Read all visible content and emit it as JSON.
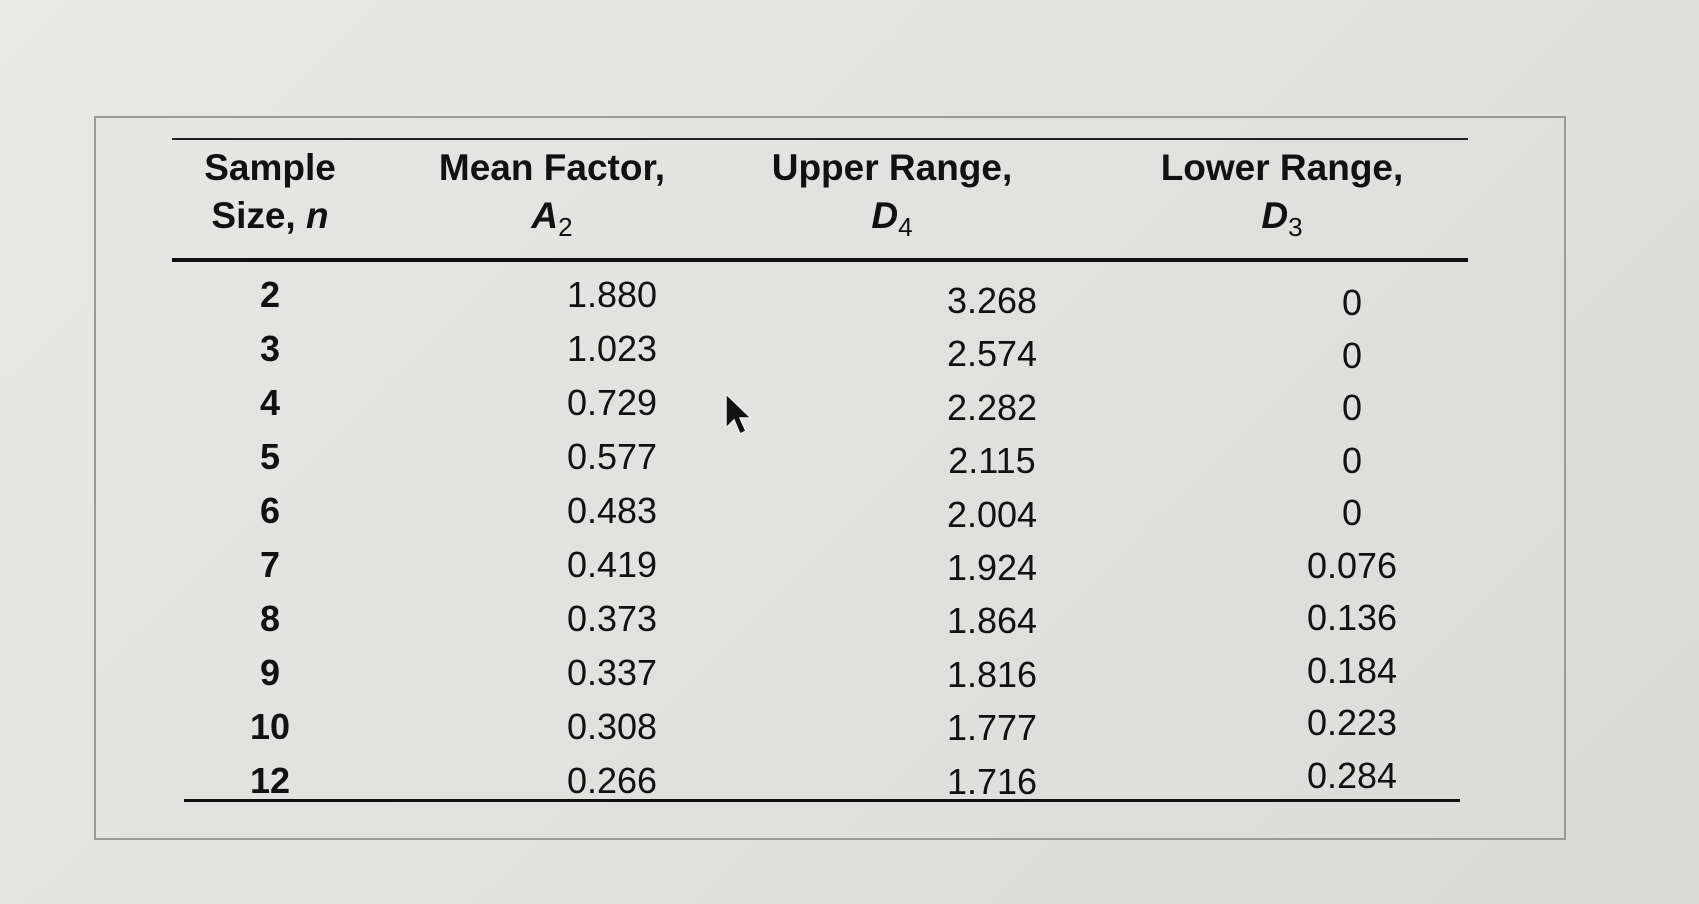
{
  "table": {
    "headers": [
      {
        "line1": "Sample",
        "line2_text": "Size, ",
        "line2_symbol": "n",
        "subscript": ""
      },
      {
        "line1": "Mean Factor,",
        "line2_text": "",
        "line2_symbol": "A",
        "subscript": "2"
      },
      {
        "line1": "Upper Range,",
        "line2_text": "",
        "line2_symbol": "D",
        "subscript": "4"
      },
      {
        "line1": "Lower Range,",
        "line2_text": "",
        "line2_symbol": "D",
        "subscript": "3"
      }
    ],
    "rows": [
      [
        "2",
        "1.880",
        "3.268",
        "0"
      ],
      [
        "3",
        "1.023",
        "2.574",
        "0"
      ],
      [
        "4",
        "0.729",
        "2.282",
        "0"
      ],
      [
        "5",
        "0.577",
        "2.115",
        "0"
      ],
      [
        "6",
        "0.483",
        "2.004",
        "0"
      ],
      [
        "7",
        "0.419",
        "1.924",
        "0.076"
      ],
      [
        "8",
        "0.373",
        "1.864",
        "0.136"
      ],
      [
        "9",
        "0.337",
        "1.816",
        "0.184"
      ],
      [
        "10",
        "0.308",
        "1.777",
        "0.223"
      ],
      [
        "12",
        "0.266",
        "1.716",
        "0.284"
      ]
    ]
  },
  "icons": {
    "cursor": "mouse-pointer-icon"
  },
  "colors": {
    "paper": "#e4e4e2",
    "ink": "#111111",
    "frame": "#9a9a98"
  }
}
